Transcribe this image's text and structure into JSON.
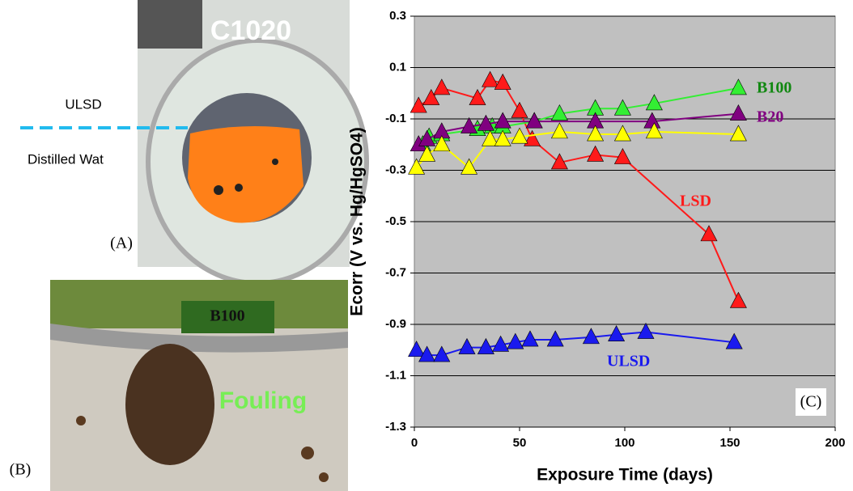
{
  "panels": {
    "a_label": "(A)",
    "b_label": "(B)",
    "c_label": "(C)",
    "sample": "C1020",
    "upper_layer": "ULSD",
    "lower_layer": "Distilled Wat",
    "fuel": "B100",
    "fouling": "Fouling"
  },
  "chart_data": {
    "type": "line",
    "xlabel": "Exposure Time (days)",
    "ylabel": "Ecorr (V vs. Hg/HgSO4)",
    "xlim": [
      0,
      200
    ],
    "xticks": [
      0,
      50,
      100,
      150,
      200
    ],
    "ylim": [
      -1.3,
      0.3
    ],
    "yticks": [
      0.3,
      0.1,
      -0.1,
      -0.3,
      -0.5,
      -0.7,
      -0.9,
      -1.1,
      -1.3
    ],
    "grid": true,
    "series": [
      {
        "name": "LSD",
        "color": "#ff1a1a",
        "x": [
          2,
          8,
          13,
          30,
          36,
          42,
          50,
          56,
          69,
          86,
          99,
          140,
          154
        ],
        "values": [
          -0.05,
          -0.02,
          0.02,
          -0.02,
          0.05,
          0.04,
          -0.07,
          -0.18,
          -0.27,
          -0.24,
          -0.25,
          -0.55,
          -0.81
        ]
      },
      {
        "name": "B100",
        "color": "#33ee33",
        "x": [
          4,
          7,
          13,
          30,
          37,
          42,
          57,
          69,
          86,
          99,
          114,
          154
        ],
        "values": [
          -0.2,
          -0.17,
          -0.16,
          -0.14,
          -0.13,
          -0.13,
          -0.11,
          -0.08,
          -0.06,
          -0.06,
          -0.04,
          0.02
        ]
      },
      {
        "name": "B20",
        "color": "#800080",
        "x": [
          2,
          6,
          13,
          26,
          34,
          42,
          57,
          86,
          113,
          154
        ],
        "values": [
          -0.2,
          -0.18,
          -0.15,
          -0.13,
          -0.12,
          -0.11,
          -0.11,
          -0.11,
          -0.11,
          -0.08
        ]
      },
      {
        "color": "#ffff00",
        "x": [
          1,
          6,
          13,
          26,
          36,
          42,
          50,
          69,
          86,
          99,
          114,
          154
        ],
        "values": [
          -0.29,
          -0.24,
          -0.2,
          -0.29,
          -0.18,
          -0.18,
          -0.17,
          -0.15,
          -0.16,
          -0.16,
          -0.15,
          -0.16
        ]
      },
      {
        "name": "ULSD",
        "color": "#1a1aee",
        "x": [
          1,
          6,
          13,
          25,
          34,
          41,
          48,
          55,
          67,
          84,
          96,
          110,
          152
        ],
        "values": [
          -1.0,
          -1.02,
          -1.02,
          -0.99,
          -0.99,
          -0.98,
          -0.97,
          -0.96,
          -0.96,
          -0.95,
          -0.94,
          -0.93,
          -0.97
        ]
      }
    ]
  }
}
